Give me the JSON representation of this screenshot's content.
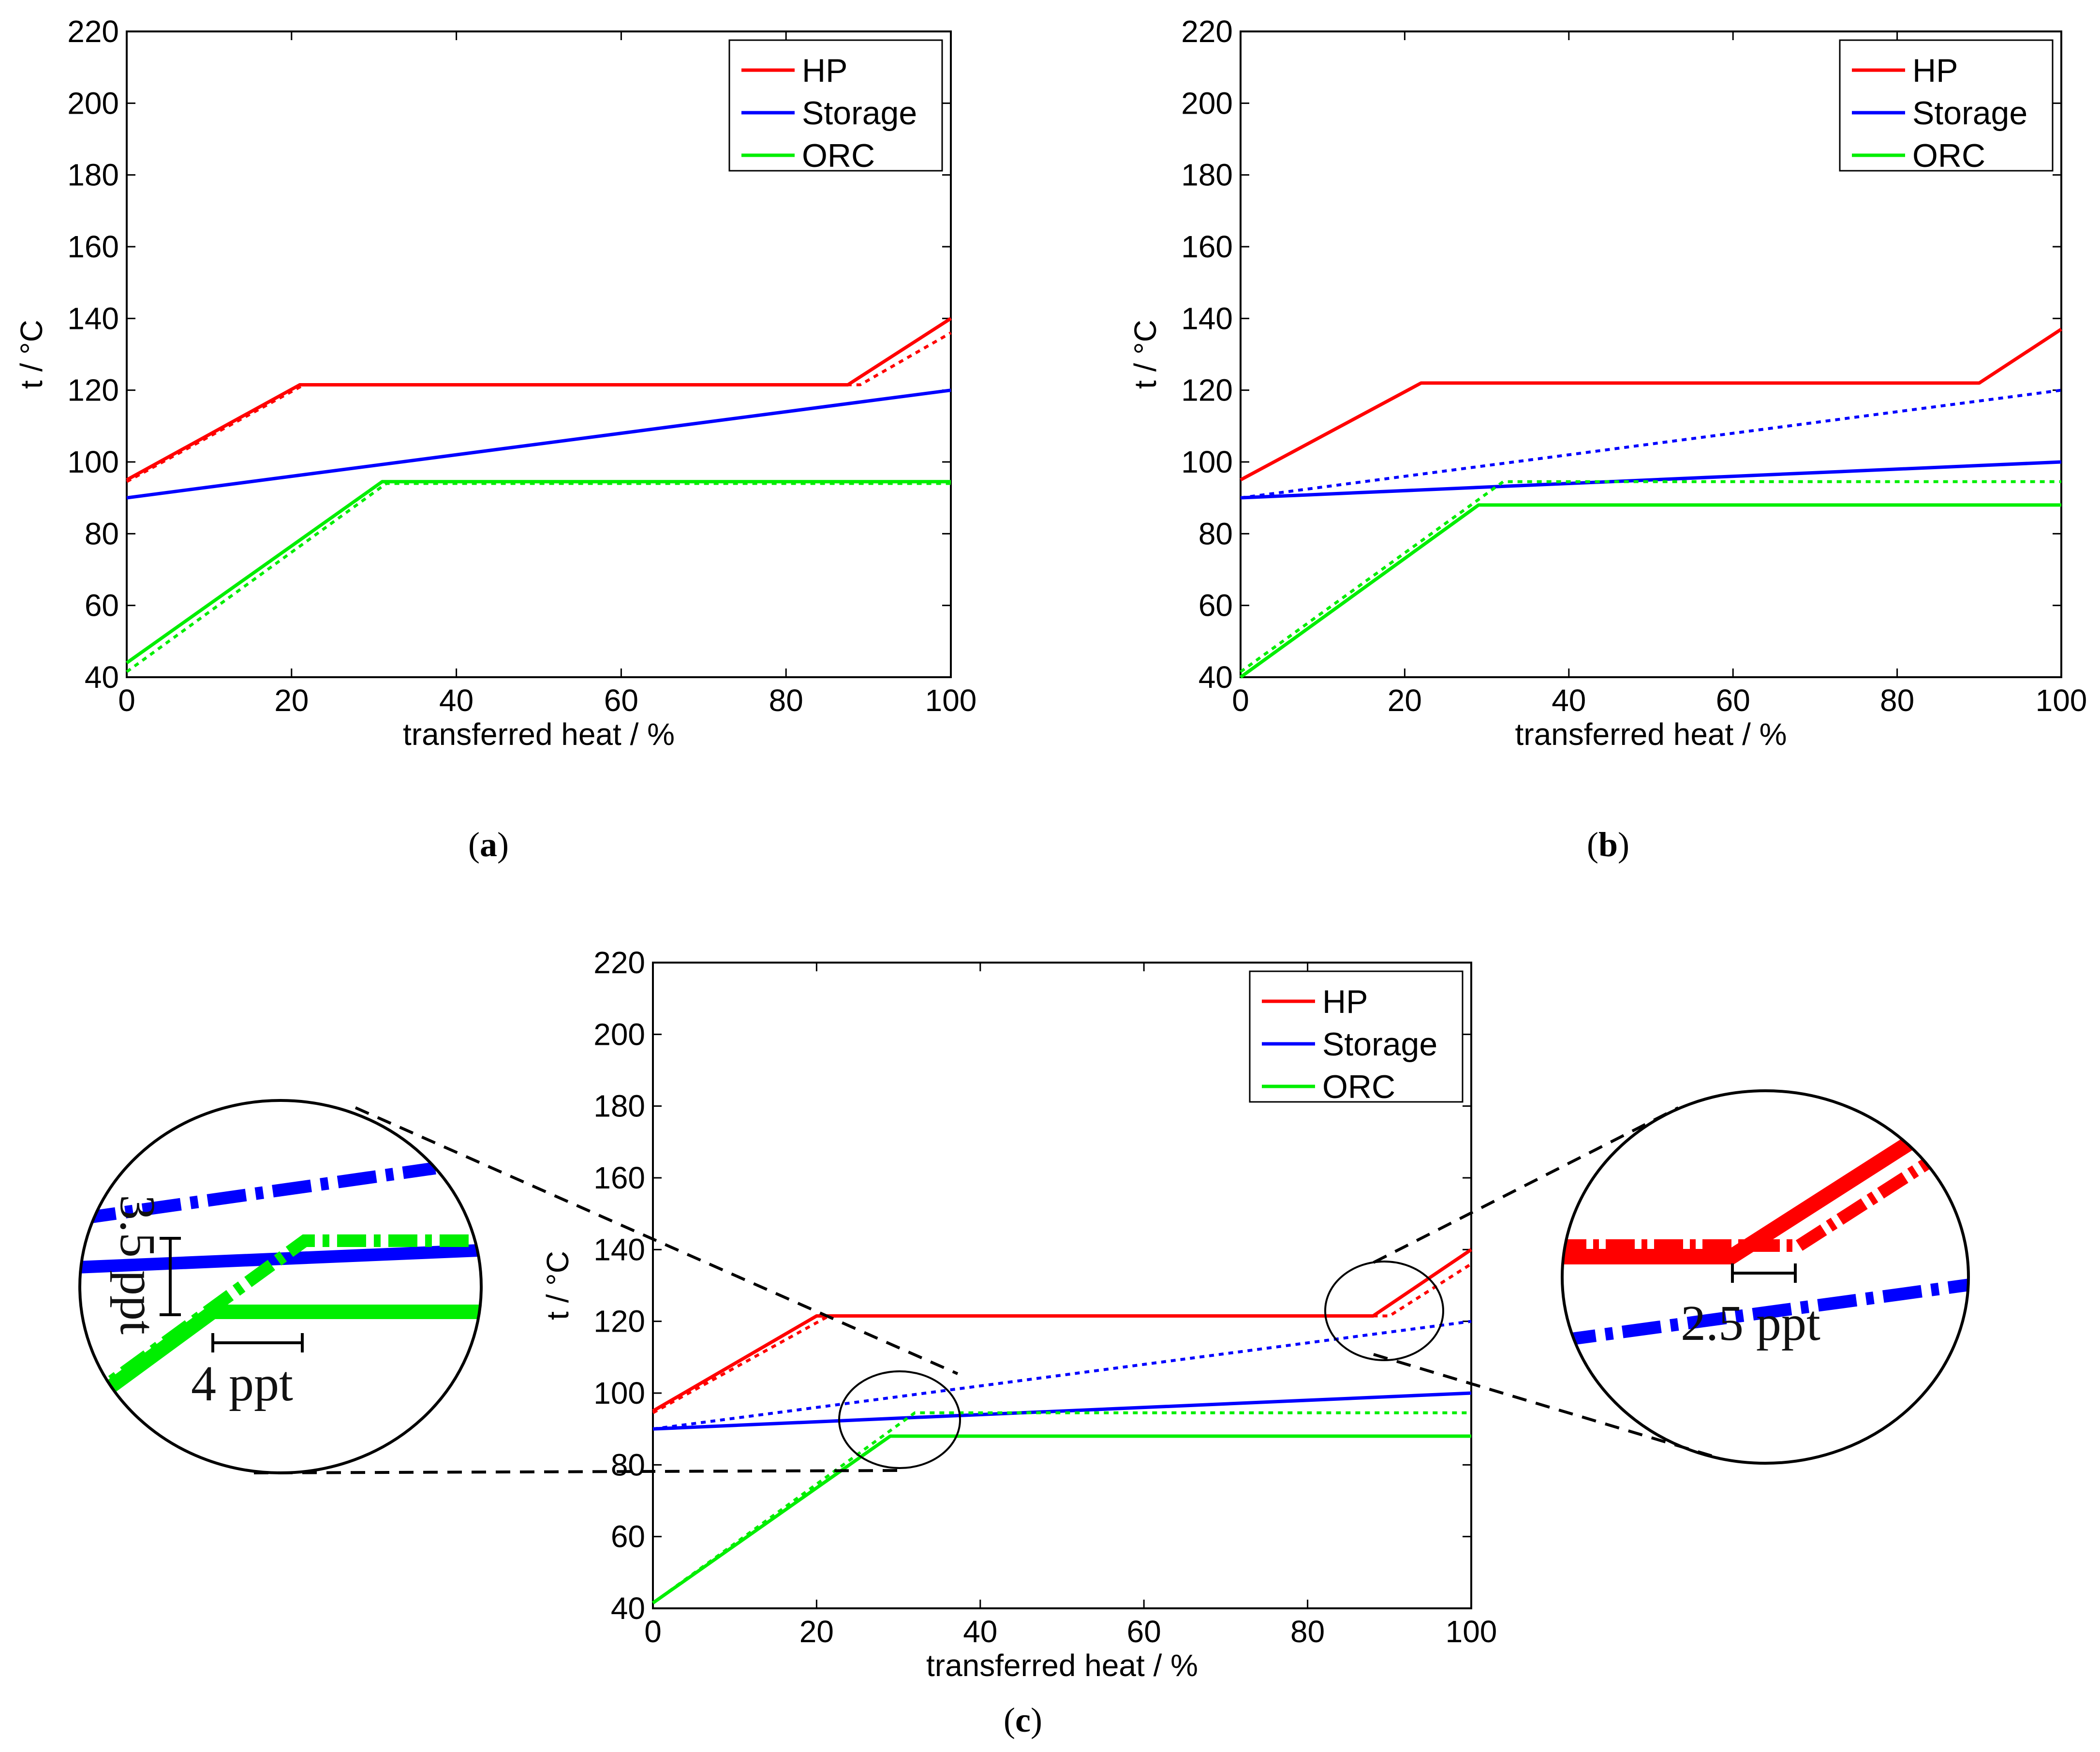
{
  "chart_data": [
    {
      "panel": "a",
      "caption": "a",
      "type": "line",
      "xlabel": "transferred heat / %",
      "ylabel": "t / °C",
      "xlim": [
        0,
        100
      ],
      "ylim": [
        40,
        220
      ],
      "xticks": [
        0,
        20,
        40,
        60,
        80,
        100
      ],
      "yticks": [
        40,
        60,
        80,
        100,
        120,
        140,
        160,
        180,
        200,
        220
      ],
      "grid": false,
      "legend_position": "top-right",
      "legend": [
        "HP",
        "Storage",
        "ORC"
      ],
      "series": [
        {
          "name": "HP",
          "color": "#ff0000",
          "style": "solid",
          "x": [
            0,
            21,
            87.5,
            100
          ],
          "y": [
            95,
            121.5,
            121.5,
            140
          ]
        },
        {
          "color": "#ff0000",
          "style": "dotted",
          "x": [
            0,
            21.5,
            89,
            100
          ],
          "y": [
            94.5,
            121.5,
            121.5,
            136
          ]
        },
        {
          "name": "Storage",
          "color": "#0000ff",
          "style": "solid",
          "x": [
            0,
            100
          ],
          "y": [
            90,
            120
          ]
        },
        {
          "color": "#0000ff",
          "style": "dotted",
          "x": [
            0,
            100
          ],
          "y": [
            90,
            120
          ]
        },
        {
          "name": "ORC",
          "color": "#00ee00",
          "style": "solid",
          "x": [
            0,
            31,
            100
          ],
          "y": [
            44,
            94.5,
            94.5
          ]
        },
        {
          "color": "#00ee00",
          "style": "dotted",
          "x": [
            0,
            31.5,
            100
          ],
          "y": [
            41.5,
            94,
            94
          ]
        }
      ]
    },
    {
      "panel": "b",
      "caption": "b",
      "type": "line",
      "xlabel": "transferred heat / %",
      "ylabel": "t / °C",
      "xlim": [
        0,
        100
      ],
      "ylim": [
        40,
        220
      ],
      "xticks": [
        0,
        20,
        40,
        60,
        80,
        100
      ],
      "yticks": [
        40,
        60,
        80,
        100,
        120,
        140,
        160,
        180,
        200,
        220
      ],
      "grid": false,
      "legend_position": "top-right",
      "legend": [
        "HP",
        "Storage",
        "ORC"
      ],
      "series": [
        {
          "name": "HP",
          "color": "#ff0000",
          "style": "solid",
          "x": [
            0,
            22,
            90,
            100
          ],
          "y": [
            95,
            122,
            122,
            137
          ]
        },
        {
          "name": "Storage",
          "color": "#0000ff",
          "style": "solid",
          "x": [
            0,
            100
          ],
          "y": [
            90,
            100
          ]
        },
        {
          "color": "#0000ff",
          "style": "dotted",
          "x": [
            0,
            100
          ],
          "y": [
            90,
            120
          ]
        },
        {
          "name": "ORC",
          "color": "#00ee00",
          "style": "solid",
          "x": [
            0,
            29,
            100
          ],
          "y": [
            40,
            88,
            88
          ]
        },
        {
          "color": "#00ee00",
          "style": "dotted",
          "x": [
            0,
            32,
            100
          ],
          "y": [
            41.5,
            94.5,
            94.5
          ]
        }
      ]
    },
    {
      "panel": "c",
      "caption": "c",
      "type": "line",
      "xlabel": "transferred heat / %",
      "ylabel": "t / °C",
      "xlim": [
        0,
        100
      ],
      "ylim": [
        40,
        220
      ],
      "xticks": [
        0,
        20,
        40,
        60,
        80,
        100
      ],
      "yticks": [
        40,
        60,
        80,
        100,
        120,
        140,
        160,
        180,
        200,
        220
      ],
      "grid": false,
      "legend_position": "top-right",
      "legend": [
        "HP",
        "Storage",
        "ORC"
      ],
      "series": [
        {
          "name": "HP",
          "color": "#ff0000",
          "style": "solid",
          "x": [
            0,
            20,
            88,
            100
          ],
          "y": [
            95,
            121.5,
            121.5,
            140
          ]
        },
        {
          "color": "#ff0000",
          "style": "dotted",
          "x": [
            0,
            21.5,
            90,
            100
          ],
          "y": [
            94.5,
            121.5,
            121.5,
            136
          ]
        },
        {
          "name": "Storage",
          "color": "#0000ff",
          "style": "solid",
          "x": [
            0,
            100
          ],
          "y": [
            90,
            100
          ]
        },
        {
          "color": "#0000ff",
          "style": "dotted",
          "x": [
            0,
            100
          ],
          "y": [
            90,
            120
          ]
        },
        {
          "name": "ORC",
          "color": "#00ee00",
          "style": "solid",
          "x": [
            0,
            29,
            100
          ],
          "y": [
            41.5,
            88,
            88
          ]
        },
        {
          "color": "#00ee00",
          "style": "dotted",
          "x": [
            0,
            32,
            100
          ],
          "y": [
            41.5,
            94.5,
            94.5
          ]
        }
      ],
      "annotations": [
        {
          "label": "3.5 ppt",
          "zoom_of": "ORC pinch"
        },
        {
          "label": "4 ppt",
          "zoom_of": "ORC pinch"
        },
        {
          "label": "2.5 ppt",
          "zoom_of": "HP knee"
        }
      ]
    }
  ]
}
